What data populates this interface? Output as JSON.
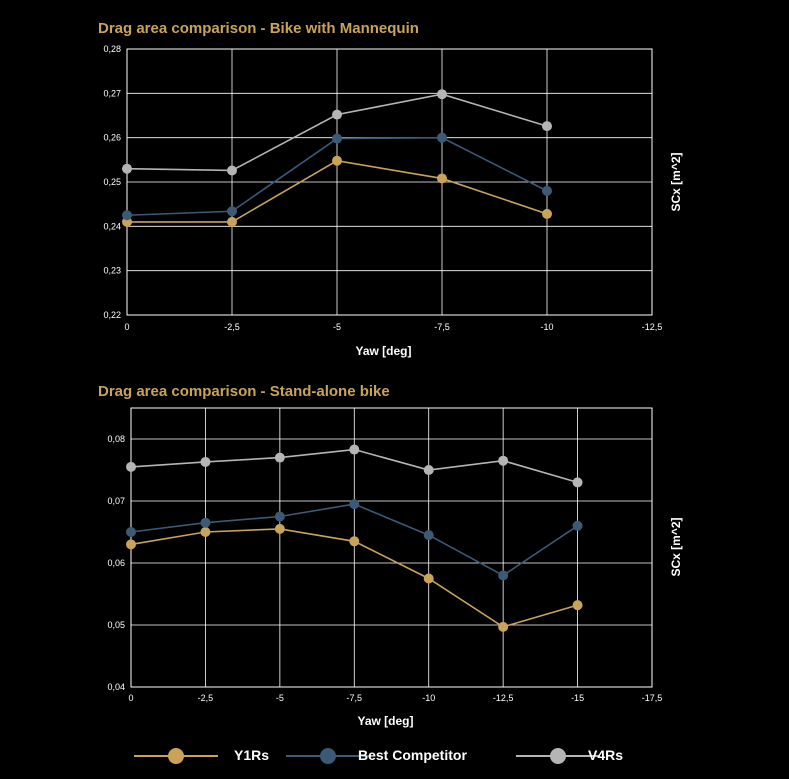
{
  "chart_data": [
    {
      "type": "line",
      "title": "Drag area comparison - Bike with Mannequin",
      "xlabel": "Yaw [deg]",
      "ylabel": "SCx [m^2]",
      "x_ticks": [
        "0",
        "-2,5",
        "-5",
        "-7,5",
        "-10",
        "-12,5"
      ],
      "y_ticks": [
        "0,22",
        "0,23",
        "0,24",
        "0,25",
        "0,26",
        "0,27",
        "0,28"
      ],
      "xlim": [
        0,
        -12.5
      ],
      "ylim": [
        0.22,
        0.28
      ],
      "grid": true,
      "x": [
        0,
        -2.5,
        -5,
        -7.5,
        -10
      ],
      "series": [
        {
          "name": "Y1Rs",
          "color": "#c9a35a",
          "values": [
            0.241,
            0.241,
            0.2548,
            0.2508,
            0.2428
          ]
        },
        {
          "name": "Best Competitor",
          "color": "#3c5a76",
          "values": [
            0.2425,
            0.2434,
            0.2598,
            0.26,
            0.248
          ]
        },
        {
          "name": "V4Rs",
          "color": "#b5b5b5",
          "values": [
            0.253,
            0.2526,
            0.2652,
            0.2698,
            0.2626
          ]
        }
      ]
    },
    {
      "type": "line",
      "title": "Drag area comparison - Stand-alone bike",
      "xlabel": "Yaw [deg]",
      "ylabel": "SCx [m^2]",
      "x_ticks": [
        "0",
        "-2,5",
        "-5",
        "-7,5",
        "-10",
        "-12,5",
        "-15",
        "-17,5"
      ],
      "y_ticks": [
        "0,04",
        "0,05",
        "0,06",
        "0,07",
        "0,08"
      ],
      "xlim": [
        0,
        -17.5
      ],
      "ylim": [
        0.04,
        0.085
      ],
      "grid": true,
      "x": [
        0,
        -2.5,
        -5,
        -7.5,
        -10,
        -12.5,
        -15
      ],
      "series": [
        {
          "name": "Y1Rs",
          "color": "#c9a35a",
          "values": [
            0.063,
            0.065,
            0.0655,
            0.0635,
            0.0575,
            0.0497,
            0.0532
          ]
        },
        {
          "name": "Best Competitor",
          "color": "#3c5a76",
          "values": [
            0.065,
            0.0665,
            0.0675,
            0.0695,
            0.0645,
            0.058,
            0.066
          ]
        },
        {
          "name": "V4Rs",
          "color": "#b5b5b5",
          "values": [
            0.0755,
            0.0763,
            0.077,
            0.0783,
            0.075,
            0.0765,
            0.073
          ]
        }
      ]
    }
  ],
  "legend": {
    "items": [
      {
        "label": "Y1Rs",
        "color": "#c9a35a"
      },
      {
        "label": "Best Competitor",
        "color": "#3c5a76"
      },
      {
        "label": "V4Rs",
        "color": "#b5b5b5"
      }
    ]
  }
}
